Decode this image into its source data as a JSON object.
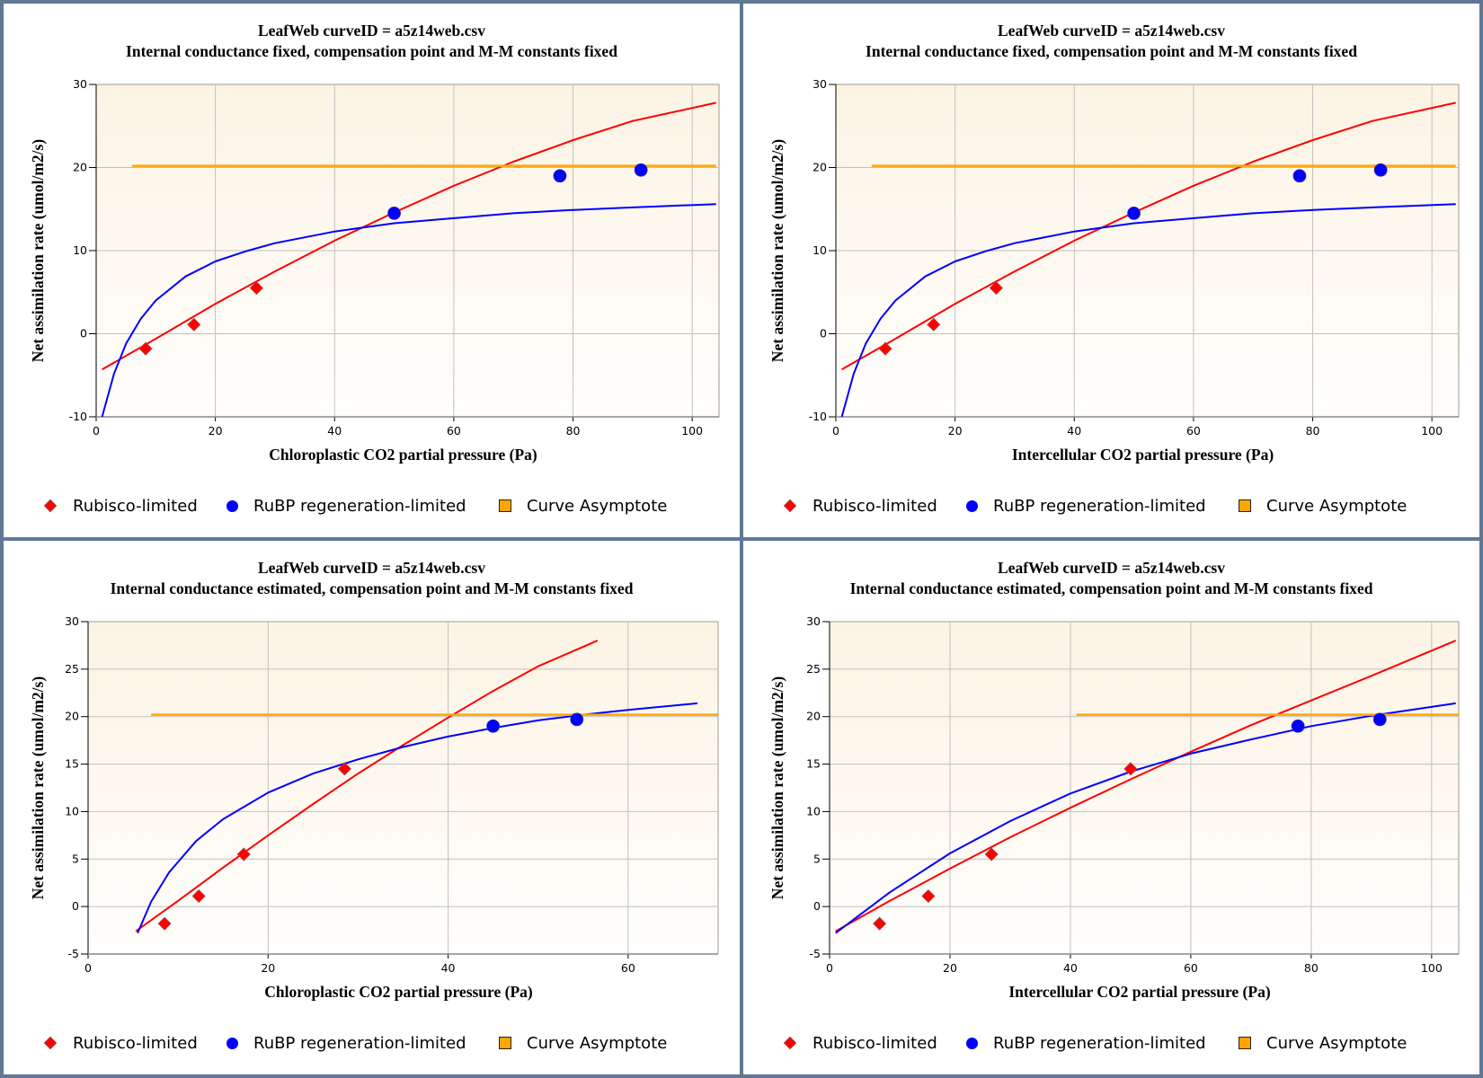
{
  "legend": {
    "rubisco": "Rubisco-limited",
    "rubp": "RuBP regeneration-limited",
    "asymptote": "Curve Asymptote"
  },
  "colors": {
    "rubisco": "#ff0000",
    "rubp": "#0000ff",
    "asymptote": "#ffa500",
    "border": "#5f7896",
    "plot_bg_top": "#fcf3e4",
    "plot_bg_bottom": "#fffefc",
    "grid": "#c0c0c0"
  },
  "chart_data": [
    {
      "type": "scatter",
      "title": "LeafWeb curveID = a5z14web.csv",
      "subtitle": "Internal conductance fixed, compensation point and M-M constants fixed",
      "xlabel": "Chloroplastic CO2 partial pressure (Pa)",
      "ylabel": "Net assimilation rate (umol/m2/s)",
      "xlim": [
        0,
        104.5
      ],
      "ylim": [
        -10,
        30
      ],
      "xticks": [
        0,
        20,
        40,
        60,
        80,
        100
      ],
      "yticks": [
        -10,
        0,
        10,
        20,
        30
      ],
      "grid": true,
      "legend_position": "bottom",
      "series": [
        {
          "name": "Rubisco-limited",
          "kind": "points",
          "marker": "diamond",
          "x": [
            8.3,
            16.4,
            26.9
          ],
          "y": [
            -1.8,
            1.1,
            5.5
          ]
        },
        {
          "name": "RuBP regeneration-limited",
          "kind": "points",
          "marker": "circle",
          "x": [
            50.0,
            77.8,
            91.4
          ],
          "y": [
            14.5,
            19.0,
            19.7
          ]
        },
        {
          "name": "Rubisco-limited fit",
          "kind": "line",
          "color": "rubisco",
          "x": [
            1,
            10,
            20,
            30,
            40,
            50,
            60,
            70,
            80,
            90,
            104
          ],
          "y": [
            -4.3,
            -0.6,
            3.6,
            7.5,
            11.2,
            14.6,
            17.8,
            20.7,
            23.3,
            25.6,
            27.8
          ]
        },
        {
          "name": "RuBP regeneration-limited fit",
          "kind": "line",
          "color": "rubp",
          "x": [
            1,
            3,
            5,
            7.5,
            10,
            15,
            20,
            25,
            30,
            40,
            50,
            60,
            70,
            80,
            90,
            104
          ],
          "y": [
            -10.0,
            -4.8,
            -1.2,
            1.8,
            4.0,
            6.9,
            8.7,
            9.9,
            10.9,
            12.3,
            13.3,
            13.9,
            14.5,
            14.9,
            15.2,
            15.6
          ]
        },
        {
          "name": "Curve Asymptote",
          "kind": "line",
          "color": "asymptote",
          "x": [
            6,
            104
          ],
          "y": [
            20.2,
            20.2
          ]
        }
      ]
    },
    {
      "type": "scatter",
      "title": "LeafWeb curveID = a5z14web.csv",
      "subtitle": "Internal conductance fixed, compensation point and M-M constants fixed",
      "xlabel": "Intercellular CO2 partial pressure (Pa)",
      "ylabel": "Net assimilation rate (umol/m2/s)",
      "xlim": [
        0,
        104.5
      ],
      "ylim": [
        -10,
        30
      ],
      "xticks": [
        0,
        20,
        40,
        60,
        80,
        100
      ],
      "yticks": [
        -10,
        0,
        10,
        20,
        30
      ],
      "grid": true,
      "legend_position": "bottom",
      "series": [
        {
          "name": "Rubisco-limited",
          "kind": "points",
          "marker": "diamond",
          "x": [
            8.3,
            16.4,
            26.9
          ],
          "y": [
            -1.8,
            1.1,
            5.5
          ]
        },
        {
          "name": "RuBP regeneration-limited",
          "kind": "points",
          "marker": "circle",
          "x": [
            50.0,
            77.8,
            91.4
          ],
          "y": [
            14.5,
            19.0,
            19.7
          ]
        },
        {
          "name": "Rubisco-limited fit",
          "kind": "line",
          "color": "rubisco",
          "x": [
            1,
            10,
            20,
            30,
            40,
            50,
            60,
            70,
            80,
            90,
            104
          ],
          "y": [
            -4.3,
            -0.6,
            3.6,
            7.5,
            11.2,
            14.6,
            17.8,
            20.7,
            23.3,
            25.6,
            27.8
          ]
        },
        {
          "name": "RuBP regeneration-limited fit",
          "kind": "line",
          "color": "rubp",
          "x": [
            1,
            3,
            5,
            7.5,
            10,
            15,
            20,
            25,
            30,
            40,
            50,
            60,
            70,
            80,
            90,
            104
          ],
          "y": [
            -10.0,
            -4.8,
            -1.2,
            1.8,
            4.0,
            6.9,
            8.7,
            9.9,
            10.9,
            12.3,
            13.3,
            13.9,
            14.5,
            14.9,
            15.2,
            15.6
          ]
        },
        {
          "name": "Curve Asymptote",
          "kind": "line",
          "color": "asymptote",
          "x": [
            6,
            104
          ],
          "y": [
            20.2,
            20.2
          ]
        }
      ]
    },
    {
      "type": "scatter",
      "title": "LeafWeb curveID = a5z14web.csv",
      "subtitle": "Internal conductance estimated, compensation point and M-M constants fixed",
      "xlabel": "Chloroplastic CO2 partial pressure (Pa)",
      "ylabel": "Net assimilation rate (umol/m2/s)",
      "xlim": [
        0,
        70
      ],
      "ylim": [
        -5,
        30
      ],
      "xticks": [
        0,
        20,
        40,
        60
      ],
      "yticks": [
        -5,
        0,
        5,
        10,
        15,
        20,
        25,
        30
      ],
      "grid": true,
      "legend_position": "bottom",
      "series": [
        {
          "name": "Rubisco-limited",
          "kind": "points",
          "marker": "diamond",
          "x": [
            8.5,
            12.3,
            17.3,
            28.5
          ],
          "y": [
            -1.8,
            1.1,
            5.5,
            14.5
          ]
        },
        {
          "name": "RuBP regeneration-limited",
          "kind": "points",
          "marker": "circle",
          "x": [
            45.0,
            54.3
          ],
          "y": [
            19.0,
            19.7
          ]
        },
        {
          "name": "Rubisco-limited fit",
          "kind": "line",
          "color": "rubisco",
          "x": [
            5.3,
            10,
            15,
            20,
            25,
            30,
            35,
            40,
            45,
            50,
            56.6
          ],
          "y": [
            -2.6,
            0.6,
            4.1,
            7.5,
            10.8,
            14.0,
            17.0,
            19.9,
            22.7,
            25.3,
            28.0
          ]
        },
        {
          "name": "RuBP regeneration-limited fit",
          "kind": "line",
          "color": "rubp",
          "x": [
            5.5,
            7,
            9,
            12,
            15,
            20,
            25,
            30,
            35,
            40,
            45,
            50,
            55,
            60,
            67.7
          ],
          "y": [
            -2.8,
            0.5,
            3.6,
            6.9,
            9.2,
            12.0,
            14.0,
            15.5,
            16.8,
            17.9,
            18.8,
            19.6,
            20.2,
            20.7,
            21.4
          ]
        },
        {
          "name": "Curve Asymptote",
          "kind": "line",
          "color": "asymptote",
          "x": [
            7,
            70
          ],
          "y": [
            20.2,
            20.2
          ]
        }
      ]
    },
    {
      "type": "scatter",
      "title": "LeafWeb curveID = a5z14web.csv",
      "subtitle": "Internal conductance estimated, compensation point and M-M constants fixed",
      "xlabel": "Intercellular CO2 partial pressure (Pa)",
      "ylabel": "Net assimilation rate (umol/m2/s)",
      "xlim": [
        0,
        104.5
      ],
      "ylim": [
        -5,
        30
      ],
      "xticks": [
        0,
        20,
        40,
        60,
        80,
        100
      ],
      "yticks": [
        -5,
        0,
        5,
        10,
        15,
        20,
        25,
        30
      ],
      "grid": true,
      "legend_position": "bottom",
      "series": [
        {
          "name": "Rubisco-limited",
          "kind": "points",
          "marker": "diamond",
          "x": [
            8.3,
            16.4,
            26.9,
            50.0
          ],
          "y": [
            -1.8,
            1.1,
            5.5,
            14.5
          ]
        },
        {
          "name": "RuBP regeneration-limited",
          "kind": "points",
          "marker": "circle",
          "x": [
            77.8,
            91.4
          ],
          "y": [
            19.0,
            19.7
          ]
        },
        {
          "name": "Rubisco-limited fit",
          "kind": "line",
          "color": "rubisco",
          "x": [
            1,
            10,
            20,
            30,
            40,
            50,
            60,
            70,
            80,
            90,
            104
          ],
          "y": [
            -2.6,
            0.6,
            4.0,
            7.3,
            10.4,
            13.4,
            16.3,
            19.1,
            21.7,
            24.3,
            28.0
          ]
        },
        {
          "name": "RuBP regeneration-limited fit",
          "kind": "line",
          "color": "rubp",
          "x": [
            1,
            10,
            20,
            30,
            40,
            50,
            60,
            70,
            80,
            90,
            104
          ],
          "y": [
            -2.8,
            1.5,
            5.6,
            9.0,
            11.9,
            14.2,
            16.1,
            17.6,
            19.0,
            20.1,
            21.4
          ]
        },
        {
          "name": "Curve Asymptote",
          "kind": "line",
          "color": "asymptote",
          "x": [
            41,
            104.5
          ],
          "y": [
            20.2,
            20.2
          ]
        }
      ]
    }
  ]
}
